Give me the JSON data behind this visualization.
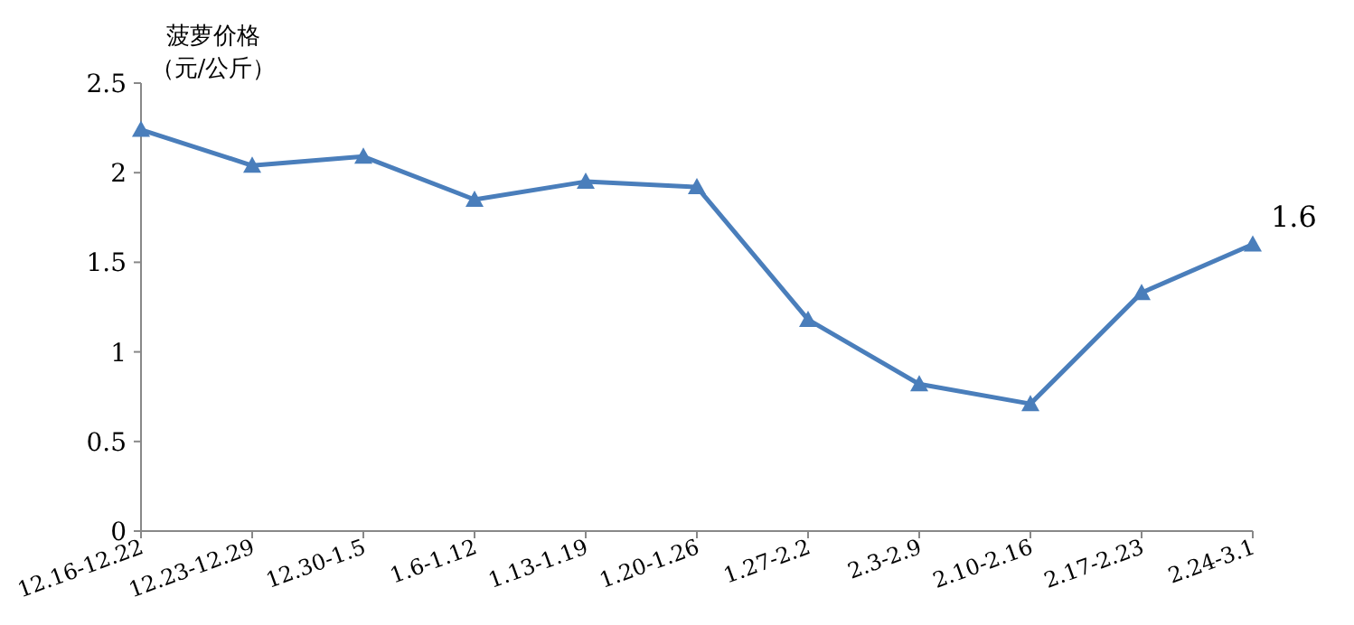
{
  "chart_data": {
    "type": "line",
    "ylabel": "菠萝价格（元/公斤）",
    "categories": [
      "12.16-12.22",
      "12.23-12.29",
      "12.30-1.5",
      "1.6-1.12",
      "1.13-1.19",
      "1.20-1.26",
      "1.27-2.2",
      "2.3-2.9",
      "2.10-2.16",
      "2.17-2.23",
      "2.24-3.1"
    ],
    "series": [
      {
        "color": "#4a7ebb",
        "values": [
          2.24,
          2.04,
          2.09,
          1.85,
          1.95,
          1.92,
          1.18,
          0.82,
          0.71,
          1.33,
          1.6
        ],
        "value_labels": [
          null,
          null,
          null,
          null,
          null,
          null,
          null,
          null,
          null,
          null,
          "1.6"
        ]
      }
    ],
    "ylim": [
      0,
      2.5
    ],
    "yticks": [
      0,
      0.5,
      1,
      1.5,
      2,
      2.5
    ],
    "marker": "triangle",
    "line_style": "solid",
    "grid": false
  }
}
